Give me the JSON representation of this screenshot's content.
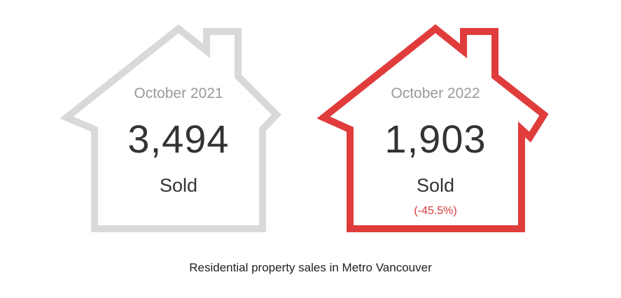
{
  "chart_data": {
    "type": "table",
    "caption": "Residential property sales in Metro Vancouver",
    "items": [
      {
        "period": "October 2021",
        "value": "3,494",
        "unit": "Sold",
        "change": "",
        "color": "#d9d9d9"
      },
      {
        "period": "October 2022",
        "value": "1,903",
        "unit": "Sold",
        "change": "(-45.5%)",
        "color": "#e03c3c"
      }
    ]
  }
}
